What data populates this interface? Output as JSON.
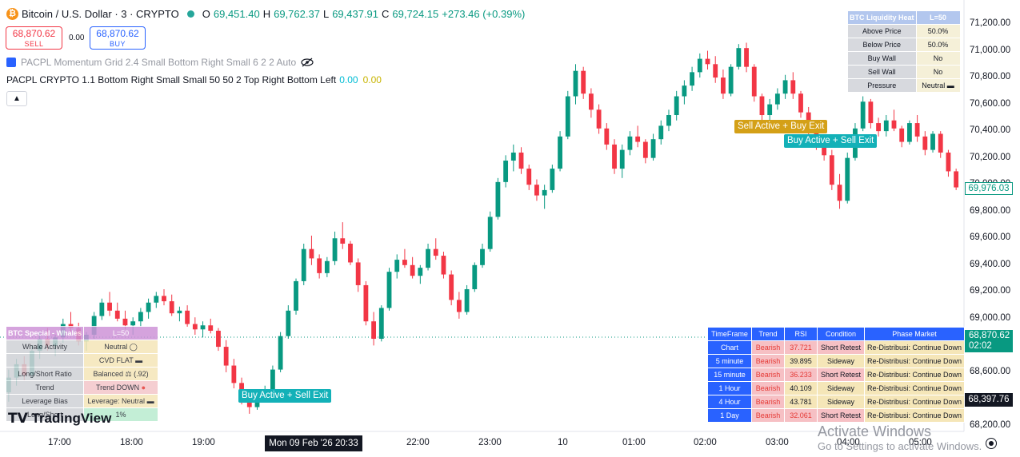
{
  "header": {
    "symbol": "Bitcoin / U.S. Dollar · 3 · CRYPTO",
    "open_label": "O",
    "open": "69,451.40",
    "high_label": "H",
    "high": "69,762.37",
    "low_label": "L",
    "low": "69,437.91",
    "close_label": "C",
    "close": "69,724.15",
    "change": "+273.46 (+0.39%)",
    "icon": "bitcoin-icon"
  },
  "trade": {
    "sell_price": "68,870.62",
    "sell_label": "SELL",
    "spread": "0.00",
    "buy_price": "68,870.62",
    "buy_label": "BUY"
  },
  "indicators": {
    "momentum_grid": "PACPL Momentum Grid 2.4 Small Bottom Right Small 6 2 2 Auto",
    "crypto": "PACPL CRYPTO 1.1 Bottom Right Small Small 50 50 2 Top Right Bottom Left",
    "crypto_value1": "0.00",
    "crypto_value2": "0.00",
    "hidden_icon": "eye-off-icon"
  },
  "price_axis": [
    "71,200.00",
    "71,000.00",
    "70,800.00",
    "70,600.00",
    "70,400.00",
    "70,200.00",
    "70,000.00",
    "69,800.00",
    "69,600.00",
    "69,400.00",
    "69,200.00",
    "69,000.00",
    "68,800.00",
    "68,600.00",
    "68,400.00",
    "68,200.00"
  ],
  "time_axis": [
    "17:00",
    "18:00",
    "19:00",
    "22:00",
    "23:00",
    "10",
    "01:00",
    "02:00",
    "03:00",
    "04:00",
    "05:00"
  ],
  "current_time": "Mon 09 Feb '26   20:33",
  "price_tags": {
    "chart_price": "69,976.03",
    "last_price": "68,870.62",
    "countdown": "02:02",
    "crosshair": "68,397.76"
  },
  "signals": {
    "sell_buy_exit": "Sell Active + Buy Exit",
    "buy_sell_exit_1": "Buy Active + Sell Exit",
    "buy_sell_exit_2": "Buy Active + Sell Exit"
  },
  "liquidity": {
    "title": "BTC Liquidity Heat",
    "level": "L=50",
    "rows": [
      {
        "label": "Above Price",
        "value": "50.0%"
      },
      {
        "label": "Below Price",
        "value": "50.0%"
      },
      {
        "label": "Buy Wall",
        "value": "No"
      },
      {
        "label": "Sell Wall",
        "value": "No"
      },
      {
        "label": "Pressure",
        "value": "Neutral"
      }
    ]
  },
  "whales": {
    "title": "BTC Special - Whales",
    "level": "L=50",
    "rows": [
      {
        "label": "Whale Activity",
        "value": "Neutral"
      },
      {
        "label": "",
        "value": "CVD FLAT"
      },
      {
        "label": "Long/Short Ratio",
        "value": "Balanced",
        "extra": "(.92)"
      },
      {
        "label": "Trend",
        "value": "Trend DOWN"
      },
      {
        "label": "Leverage Bias",
        "value": "Leverage: Neutral"
      },
      {
        "label": "Long/Short",
        "value": "1%"
      }
    ]
  },
  "timeframes": {
    "headers": [
      "TimeFrame",
      "Trend",
      "RSI",
      "Condition",
      "Phase Market"
    ],
    "rows": [
      {
        "tf": "Chart",
        "trend": "Bearish",
        "rsi": "37.721",
        "cond": "Short Retest",
        "phase": "Re-Distribusi: Continue Down"
      },
      {
        "tf": "5 minute",
        "trend": "Bearish",
        "rsi": "39.895",
        "cond": "Sideway",
        "phase": "Re-Distribusi: Continue Down"
      },
      {
        "tf": "15 minute",
        "trend": "Bearish",
        "rsi": "36.233",
        "cond": "Short Retest",
        "phase": "Re-Distribusi: Continue Down"
      },
      {
        "tf": "1 Hour",
        "trend": "Bearish",
        "rsi": "40.109",
        "cond": "Sideway",
        "phase": "Re-Distribusi: Continue Down"
      },
      {
        "tf": "4 Hour",
        "trend": "Bearish",
        "rsi": "43.781",
        "cond": "Sideway",
        "phase": "Re-Distribusi: Continue Down"
      },
      {
        "tf": "1 Day",
        "trend": "Bearish",
        "rsi": "32.061",
        "cond": "Short Retest",
        "phase": "Re-Distribusi: Continue Down"
      }
    ]
  },
  "branding": {
    "logo": "TradingView",
    "activate_title": "Activate Windows",
    "activate_sub": "Go to Settings to activate Windows."
  },
  "colors": {
    "up": "#089981",
    "down": "#f23645",
    "sell_signal": "#d4a017",
    "buy_signal": "#13b1b8"
  },
  "chart_data": {
    "type": "candlestick",
    "y_range": [
      68200,
      71200
    ],
    "candles_ohlc": [
      [
        68450,
        68620,
        68380,
        68560
      ],
      [
        68560,
        68700,
        68500,
        68660
      ],
      [
        68660,
        68720,
        68540,
        68580
      ],
      [
        68580,
        68800,
        68560,
        68760
      ],
      [
        68760,
        68900,
        68700,
        68850
      ],
      [
        68850,
        68930,
        68760,
        68800
      ],
      [
        68800,
        68880,
        68720,
        68860
      ],
      [
        68860,
        69000,
        68820,
        68960
      ],
      [
        68960,
        69050,
        68900,
        68930
      ],
      [
        68930,
        68970,
        68800,
        68830
      ],
      [
        68830,
        68900,
        68760,
        68880
      ],
      [
        68880,
        69050,
        68850,
        69020
      ],
      [
        69020,
        69150,
        68990,
        69120
      ],
      [
        69120,
        69200,
        69020,
        69060
      ],
      [
        69060,
        69120,
        68980,
        69000
      ],
      [
        69000,
        69060,
        68920,
        68950
      ],
      [
        68950,
        69010,
        68880,
        68980
      ],
      [
        68980,
        69080,
        68940,
        69050
      ],
      [
        69050,
        69150,
        69000,
        69120
      ],
      [
        69120,
        69200,
        69080,
        69170
      ],
      [
        69170,
        69220,
        69100,
        69130
      ],
      [
        69130,
        69180,
        69020,
        69040
      ],
      [
        69040,
        69090,
        68980,
        69060
      ],
      [
        69060,
        69100,
        68940,
        68960
      ],
      [
        68960,
        69010,
        68880,
        68920
      ],
      [
        68920,
        68980,
        68860,
        68950
      ],
      [
        68950,
        69000,
        68890,
        68910
      ],
      [
        68910,
        68930,
        68760,
        68790
      ],
      [
        68790,
        68840,
        68600,
        68650
      ],
      [
        68650,
        68700,
        68480,
        68520
      ],
      [
        68520,
        68560,
        68360,
        68400
      ],
      [
        68400,
        68450,
        68290,
        68340
      ],
      [
        68340,
        68460,
        68320,
        68440
      ],
      [
        68440,
        68500,
        68400,
        68470
      ],
      [
        68470,
        68650,
        68450,
        68620
      ],
      [
        68620,
        68900,
        68600,
        68870
      ],
      [
        68870,
        69100,
        68850,
        69060
      ],
      [
        69060,
        69300,
        69030,
        69280
      ],
      [
        69280,
        69560,
        69250,
        69520
      ],
      [
        69520,
        69620,
        69400,
        69450
      ],
      [
        69450,
        69480,
        69300,
        69340
      ],
      [
        69340,
        69460,
        69310,
        69430
      ],
      [
        69430,
        69650,
        69400,
        69600
      ],
      [
        69600,
        69720,
        69520,
        69560
      ],
      [
        69560,
        69580,
        69400,
        69420
      ],
      [
        69420,
        69450,
        69200,
        69250
      ],
      [
        69250,
        69280,
        68950,
        68980
      ],
      [
        68980,
        69050,
        68800,
        68850
      ],
      [
        68850,
        69100,
        68830,
        69080
      ],
      [
        69080,
        69380,
        69060,
        69350
      ],
      [
        69350,
        69480,
        69300,
        69440
      ],
      [
        69440,
        69520,
        69380,
        69400
      ],
      [
        69400,
        69460,
        69300,
        69320
      ],
      [
        69320,
        69400,
        69260,
        69380
      ],
      [
        69380,
        69560,
        69360,
        69520
      ],
      [
        69520,
        69600,
        69440,
        69470
      ],
      [
        69470,
        69500,
        69300,
        69330
      ],
      [
        69330,
        69360,
        69100,
        69140
      ],
      [
        69140,
        69200,
        69000,
        69050
      ],
      [
        69050,
        69250,
        69030,
        69220
      ],
      [
        69220,
        69420,
        69200,
        69400
      ],
      [
        69400,
        69560,
        69380,
        69520
      ],
      [
        69520,
        69800,
        69500,
        69760
      ],
      [
        69760,
        70050,
        69740,
        70020
      ],
      [
        70020,
        70220,
        69980,
        70180
      ],
      [
        70180,
        70300,
        70100,
        70240
      ],
      [
        70240,
        70280,
        70080,
        70120
      ],
      [
        70120,
        70150,
        69960,
        70000
      ],
      [
        70000,
        70040,
        69880,
        69920
      ],
      [
        69920,
        70000,
        69820,
        69960
      ],
      [
        69960,
        70150,
        69940,
        70120
      ],
      [
        70120,
        70400,
        70100,
        70360
      ],
      [
        70360,
        70700,
        70340,
        70660
      ],
      [
        70660,
        70900,
        70600,
        70850
      ],
      [
        70850,
        70880,
        70640,
        70680
      ],
      [
        70680,
        70720,
        70500,
        70560
      ],
      [
        70560,
        70600,
        70380,
        70420
      ],
      [
        70420,
        70460,
        70260,
        70300
      ],
      [
        70300,
        70340,
        70080,
        70120
      ],
      [
        70120,
        70300,
        70050,
        70260
      ],
      [
        70260,
        70400,
        70220,
        70360
      ],
      [
        70360,
        70440,
        70280,
        70320
      ],
      [
        70320,
        70340,
        70160,
        70200
      ],
      [
        70200,
        70380,
        70180,
        70340
      ],
      [
        70340,
        70480,
        70300,
        70440
      ],
      [
        70440,
        70560,
        70400,
        70520
      ],
      [
        70520,
        70700,
        70480,
        70660
      ],
      [
        70660,
        70780,
        70600,
        70740
      ],
      [
        70740,
        70880,
        70700,
        70840
      ],
      [
        70840,
        70980,
        70800,
        70940
      ],
      [
        70940,
        71000,
        70860,
        70900
      ],
      [
        70900,
        70960,
        70760,
        70800
      ],
      [
        70800,
        70860,
        70640,
        70680
      ],
      [
        70680,
        70900,
        70660,
        70880
      ],
      [
        70880,
        71050,
        70860,
        71020
      ],
      [
        71020,
        71060,
        70840,
        70880
      ],
      [
        70880,
        70900,
        70620,
        70660
      ],
      [
        70660,
        70680,
        70480,
        70520
      ],
      [
        70520,
        70640,
        70480,
        70600
      ],
      [
        70600,
        70720,
        70560,
        70680
      ],
      [
        70680,
        70820,
        70640,
        70780
      ],
      [
        70780,
        70840,
        70640,
        70680
      ],
      [
        70680,
        70700,
        70500,
        70540
      ],
      [
        70540,
        70580,
        70360,
        70400
      ],
      [
        70400,
        70440,
        70260,
        70300
      ],
      [
        70300,
        70360,
        70180,
        70220
      ],
      [
        70220,
        70260,
        69960,
        70000
      ],
      [
        70000,
        70080,
        69820,
        69880
      ],
      [
        69880,
        70240,
        69860,
        70200
      ],
      [
        70200,
        70460,
        70180,
        70420
      ],
      [
        70420,
        70660,
        70400,
        70620
      ],
      [
        70620,
        70640,
        70420,
        70460
      ],
      [
        70460,
        70500,
        70360,
        70400
      ],
      [
        70400,
        70520,
        70360,
        70480
      ],
      [
        70480,
        70560,
        70400,
        70420
      ],
      [
        70420,
        70440,
        70280,
        70320
      ],
      [
        70320,
        70480,
        70300,
        70460
      ],
      [
        70460,
        70520,
        70320,
        70360
      ],
      [
        70360,
        70400,
        70220,
        70260
      ],
      [
        70260,
        70400,
        70240,
        70380
      ],
      [
        70380,
        70400,
        70200,
        70240
      ],
      [
        70240,
        70260,
        70060,
        70100
      ],
      [
        70100,
        70120,
        69960,
        69980
      ]
    ]
  }
}
